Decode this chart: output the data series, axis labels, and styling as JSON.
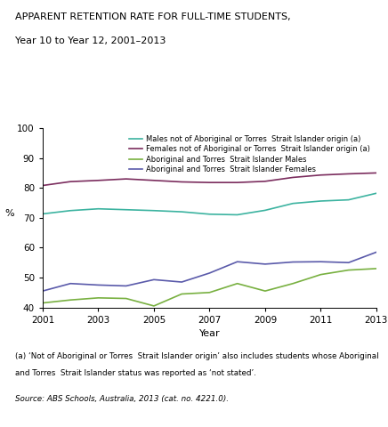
{
  "title_line1": "APPARENT RETENTION RATE FOR FULL-TIME STUDENTS,",
  "title_line2": "Year 10 to Year 12, 2001–2013",
  "ylabel": "%",
  "xlabel": "Year",
  "ylim": [
    40,
    100
  ],
  "xlim": [
    2001,
    2013
  ],
  "yticks": [
    40,
    50,
    60,
    70,
    80,
    90,
    100
  ],
  "xticks": [
    2001,
    2003,
    2005,
    2007,
    2009,
    2011,
    2013
  ],
  "years": [
    2001,
    2002,
    2003,
    2004,
    2005,
    2006,
    2007,
    2008,
    2009,
    2010,
    2011,
    2012,
    2013
  ],
  "series": {
    "males_non_indigenous": {
      "label": "Males not of Aboriginal or Torres  Strait Islander origin (a)",
      "color": "#3cb3a0",
      "values": [
        71.3,
        72.4,
        73.0,
        72.7,
        72.4,
        72.0,
        71.2,
        71.0,
        72.5,
        74.8,
        75.6,
        76.0,
        78.2
      ]
    },
    "females_non_indigenous": {
      "label": "Females not of Aboriginal or Torres  Strait Islander origin (a)",
      "color": "#7b2d5e",
      "values": [
        80.8,
        82.1,
        82.5,
        83.0,
        82.5,
        82.0,
        81.8,
        81.8,
        82.2,
        83.5,
        84.3,
        84.7,
        85.0
      ]
    },
    "males_indigenous": {
      "label": "Aboriginal and Torres  Strait Islander Males",
      "color": "#78b040",
      "values": [
        41.5,
        42.5,
        43.2,
        43.0,
        40.5,
        44.5,
        45.0,
        48.0,
        45.5,
        48.0,
        51.0,
        52.5,
        53.0
      ]
    },
    "females_indigenous": {
      "label": "Aboriginal and Torres  Strait Islander Females",
      "color": "#5a5aaa",
      "values": [
        45.5,
        48.0,
        47.5,
        47.2,
        49.3,
        48.5,
        51.5,
        55.3,
        54.5,
        55.2,
        55.3,
        55.0,
        58.5
      ]
    }
  },
  "footnote1": "(a) ‘Not of Aboriginal or Torres  Strait Islander origin’ also includes students whose Aboriginal",
  "footnote2": "and Torres  Strait Islander status was reported as ‘not stated’.",
  "source": "Source: ABS Schools, Australia, 2013 (cat. no. 4221.0).",
  "background_color": "#ffffff"
}
